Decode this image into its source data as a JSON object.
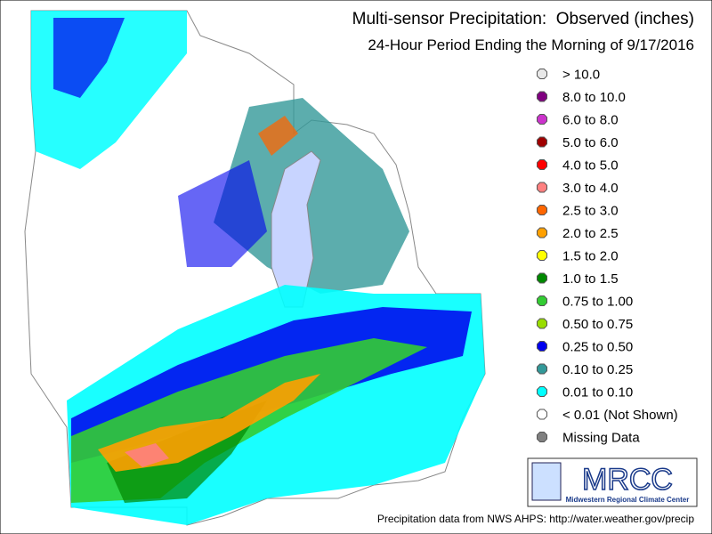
{
  "header": {
    "title": "Multi-sensor Precipitation:  Observed (inches)",
    "subtitle": "24-Hour Period Ending the Morning of 9/17/2016"
  },
  "legend": {
    "items": [
      {
        "label": "> 10.0",
        "color": "#e8e8e8"
      },
      {
        "label": "8.0 to 10.0",
        "color": "#800080"
      },
      {
        "label": "6.0 to 8.0",
        "color": "#cc33cc"
      },
      {
        "label": "5.0 to 6.0",
        "color": "#a00000"
      },
      {
        "label": "4.0 to 5.0",
        "color": "#ff0000"
      },
      {
        "label": "3.0 to 4.0",
        "color": "#ff8080"
      },
      {
        "label": "2.5 to 3.0",
        "color": "#ff6600"
      },
      {
        "label": "2.0 to 2.5",
        "color": "#ffa000"
      },
      {
        "label": "1.5 to 2.0",
        "color": "#ffff00"
      },
      {
        "label": "1.0 to 1.5",
        "color": "#008800"
      },
      {
        "label": "0.75 to 1.00",
        "color": "#33cc33"
      },
      {
        "label": "0.50 to 0.75",
        "color": "#99dd00"
      },
      {
        "label": "0.25 to 0.50",
        "color": "#0000ee"
      },
      {
        "label": "0.10 to 0.25",
        "color": "#339999"
      },
      {
        "label": "0.01 to 0.10",
        "color": "#00ffff"
      },
      {
        "label": "< 0.01 (Not Shown)",
        "color": "#ffffff"
      },
      {
        "label": "Missing Data",
        "color": "#808080"
      }
    ]
  },
  "logo": {
    "text": "MRCC",
    "subtitle": "Midwestern Regional Climate Center"
  },
  "footer": {
    "credit": "Precipitation data from NWS AHPS: http://water.weather.gov/precip"
  }
}
